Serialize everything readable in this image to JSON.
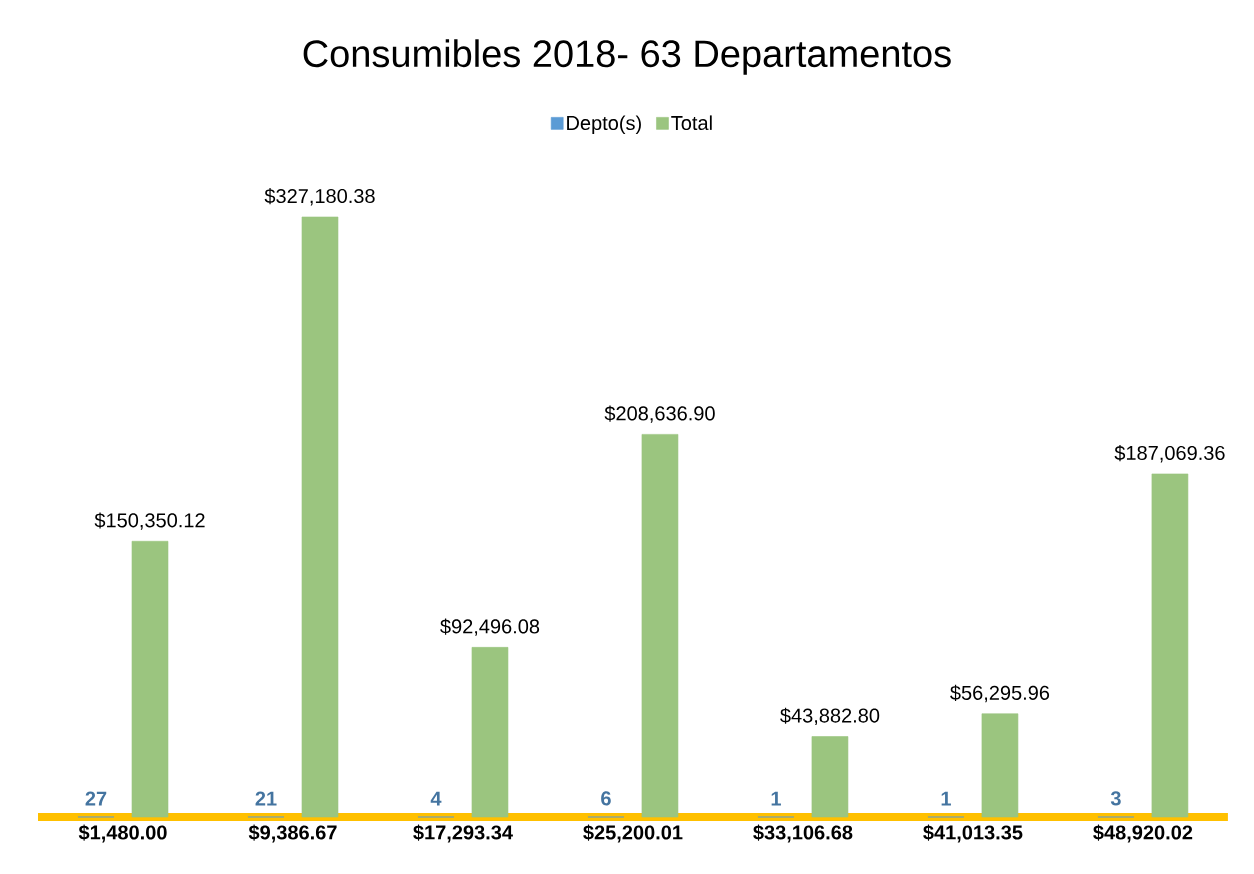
{
  "chart_data": {
    "type": "bar",
    "title": "Consumibles 2018- 63 Departamentos",
    "categories": [
      "$1,480.00",
      "$9,386.67",
      "$17,293.34",
      "$25,200.01",
      "$33,106.68",
      "$41,013.35",
      "$48,920.02"
    ],
    "series": [
      {
        "name": "Depto(s)",
        "color": "#5b9bd5",
        "values": [
          27,
          21,
          4,
          6,
          1,
          1,
          3
        ]
      },
      {
        "name": "Total",
        "color": "#9bc57f",
        "values": [
          150350.12,
          327180.38,
          92496.08,
          208636.9,
          43882.8,
          56295.96,
          187069.36
        ],
        "value_labels": [
          "$150,350.12",
          "$327,180.38",
          "$92,496.08",
          "$208,636.90",
          "$43,882.80",
          "$56,295.96",
          "$187,069.36"
        ]
      }
    ],
    "data_labels": true,
    "legend": "top"
  }
}
